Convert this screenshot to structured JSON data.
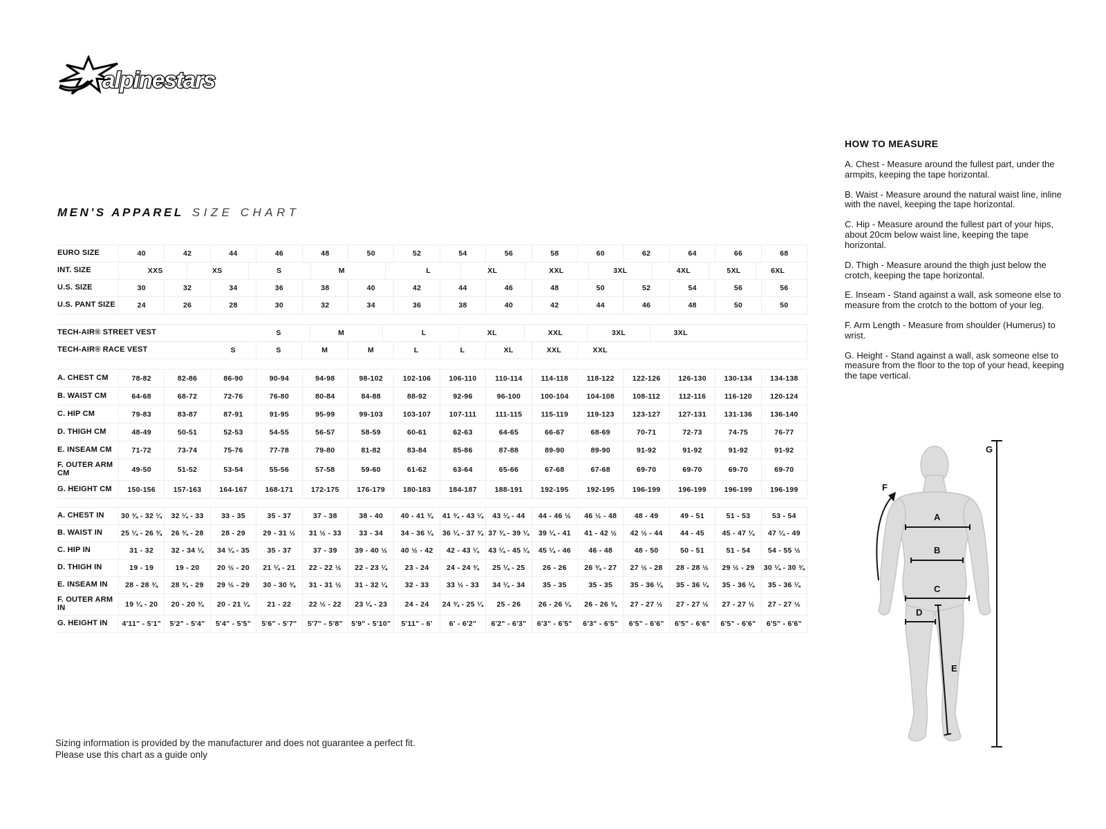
{
  "logo": {
    "brand": "alpinestars"
  },
  "title": {
    "main": "MEN'S APPAREL",
    "sub": "SIZE CHART"
  },
  "colors": {
    "brand_black": "#000000",
    "figure_gray": "#dcdcdc",
    "grid_gray": "#ececec"
  },
  "table": {
    "sections": [
      {
        "id": "sizes",
        "css": "sec-sizes",
        "rows": [
          {
            "label": "EURO SIZE",
            "values": [
              "40",
              "42",
              "44",
              "46",
              "48",
              "50",
              "52",
              "54",
              "56",
              "58",
              "60",
              "62",
              "64",
              "66",
              "68"
            ]
          },
          {
            "label": "INT. SIZE",
            "items": [
              {
                "t": "XXS",
                "p": 5.3
              },
              {
                "t": "XS",
                "p": 14.3
              },
              {
                "t": "S",
                "p": 23.3
              },
              {
                "t": "M",
                "p": 32.4
              },
              {
                "t": "L",
                "p": 45.0
              },
              {
                "t": "XL",
                "p": 54.3
              },
              {
                "t": "XXL",
                "p": 63.6
              },
              {
                "t": "3XL",
                "p": 72.9
              },
              {
                "t": "4XL",
                "p": 82.1
              },
              {
                "t": "5XL",
                "p": 89.4
              },
              {
                "t": "6XL",
                "p": 95.8
              }
            ]
          },
          {
            "label": "U.S. SIZE",
            "values": [
              "30",
              "32",
              "34",
              "36",
              "38",
              "40",
              "42",
              "44",
              "46",
              "48",
              "50",
              "52",
              "54",
              "56",
              "56"
            ]
          },
          {
            "label": "U.S. PANT SIZE",
            "values": [
              "24",
              "26",
              "28",
              "30",
              "32",
              "34",
              "36",
              "38",
              "40",
              "42",
              "44",
              "46",
              "48",
              "50",
              "50"
            ]
          }
        ]
      },
      {
        "id": "techair",
        "css": "sec-tech",
        "rows": [
          {
            "label": "TECH-AIR® STREET VEST",
            "nowrap": true,
            "items": [
              {
                "t": "S",
                "p": 23.3
              },
              {
                "t": "M",
                "p": 32.4
              },
              {
                "t": "L",
                "p": 44.4
              },
              {
                "t": "XL",
                "p": 54.3
              },
              {
                "t": "XXL",
                "p": 63.5
              },
              {
                "t": "3XL",
                "p": 72.7
              },
              {
                "t": "3XL",
                "p": 81.7
              }
            ]
          },
          {
            "label": "TECH-AIR® RACE VEST",
            "nowrap": true,
            "items": [
              {
                "t": "S",
                "p": 16.7
              },
              {
                "t": "S",
                "p": 23.3
              },
              {
                "t": "M",
                "p": 30.0
              },
              {
                "t": "M",
                "p": 36.7
              },
              {
                "t": "L",
                "p": 43.3
              },
              {
                "t": "L",
                "p": 50.0
              },
              {
                "t": "XL",
                "p": 56.7
              },
              {
                "t": "XXL",
                "p": 63.3
              },
              {
                "t": "XXL",
                "p": 70.0
              }
            ]
          }
        ]
      },
      {
        "id": "cm",
        "css": "sec-cm",
        "rowcss": "h25",
        "rows": [
          {
            "label": "A. CHEST CM",
            "values": [
              "78-82",
              "82-86",
              "86-90",
              "90-94",
              "94-98",
              "98-102",
              "102-106",
              "106-110",
              "110-114",
              "114-118",
              "118-122",
              "122-126",
              "126-130",
              "130-134",
              "134-138"
            ]
          },
          {
            "label": "B. WAIST CM",
            "values": [
              "64-68",
              "68-72",
              "72-76",
              "76-80",
              "80-84",
              "84-88",
              "88-92",
              "92-96",
              "96-100",
              "100-104",
              "104-108",
              "108-112",
              "112-116",
              "116-120",
              "120-124"
            ]
          },
          {
            "label": "C. HIP CM",
            "values": [
              "79-83",
              "83-87",
              "87-91",
              "91-95",
              "95-99",
              "99-103",
              "103-107",
              "107-111",
              "111-115",
              "115-119",
              "119-123",
              "123-127",
              "127-131",
              "131-136",
              "136-140"
            ]
          },
          {
            "label": "D. THIGH CM",
            "values": [
              "48-49",
              "50-51",
              "52-53",
              "54-55",
              "56-57",
              "58-59",
              "60-61",
              "62-63",
              "64-65",
              "66-67",
              "68-69",
              "70-71",
              "72-73",
              "74-75",
              "76-77"
            ]
          },
          {
            "label": "E. INSEAM CM",
            "values": [
              "71-72",
              "73-74",
              "75-76",
              "77-78",
              "79-80",
              "81-82",
              "83-84",
              "85-86",
              "87-88",
              "89-90",
              "89-90",
              "91-92",
              "91-92",
              "91-92",
              "91-92"
            ]
          },
          {
            "label": "F. OUTER ARM CM",
            "tall": true,
            "values": [
              "49-50",
              "51-52",
              "53-54",
              "55-56",
              "57-58",
              "59-60",
              "61-62",
              "63-64",
              "65-66",
              "67-68",
              "67-68",
              "69-70",
              "69-70",
              "69-70",
              "69-70"
            ]
          },
          {
            "label": "G. HEIGHT CM",
            "values": [
              "150-156",
              "157-163",
              "164-167",
              "168-171",
              "172-175",
              "176-179",
              "180-183",
              "184-187",
              "188-191",
              "192-195",
              "192-195",
              "196-199",
              "196-199",
              "196-199",
              "196-199"
            ]
          }
        ]
      },
      {
        "id": "in",
        "css": "sec-in",
        "rows": [
          {
            "label": "A. CHEST IN",
            "values": [
              "30 ¾ - 32 ¼",
              "32 ¼ - 33",
              "33 - 35",
              "35 - 37",
              "37 - 38",
              "38 - 40",
              "40 - 41 ¾",
              "41 ¾ - 43 ¼",
              "43 ¼ - 44",
              "44 - 46 ½",
              "46 ½ - 48",
              "48 - 49",
              "49 - 51",
              "51 - 53",
              "53 - 54"
            ]
          },
          {
            "label": "B. WAIST IN",
            "values": [
              "25 ¼ - 26 ¾",
              "26 ¾ - 28",
              "28 - 29",
              "29 - 31 ½",
              "31 ½ - 33",
              "33 - 34",
              "34 - 36 ¼",
              "36 ¼ - 37 ¾",
              "37 ¾ - 39 ¼",
              "39 ¼ - 41",
              "41 - 42 ½",
              "42 ½ - 44",
              "44 - 45",
              "45 - 47 ¼",
              "47 ¼ - 49"
            ]
          },
          {
            "label": "C. HIP IN",
            "values": [
              "31 - 32",
              "32 - 34 ¼",
              "34 ¼ - 35",
              "35 - 37",
              "37 - 39",
              "39 - 40 ½",
              "40 ½ - 42",
              "42 - 43 ¼",
              "43 ¼ - 45 ¼",
              "45 ¼ - 46",
              "46 - 48",
              "48 - 50",
              "50 - 51",
              "51 - 54",
              "54 - 55 ½"
            ]
          },
          {
            "label": "D. THIGH IN",
            "values": [
              "19 - 19",
              "19 - 20",
              "20 ½ - 20",
              "21 ¼ - 21",
              "22 - 22 ½",
              "22 - 23 ¼",
              "23 - 24",
              "24 - 24 ¾",
              "25 ¼ - 25",
              "26 - 26",
              "26 ¾ - 27",
              "27 ½ - 28",
              "28 - 28 ½",
              "29 ½ - 29",
              "30 ¼ - 30 ¾"
            ]
          },
          {
            "label": "E. INSEAM IN",
            "values": [
              "28 - 28 ¾",
              "28 ¾ - 29",
              "29 ½ - 29",
              "30 - 30 ¾",
              "31 - 31 ½",
              "31 - 32 ¼",
              "32 - 33",
              "33 ½ - 33",
              "34 ¼ - 34",
              "35 - 35",
              "35 - 35",
              "35 - 36 ¼",
              "35 - 36 ¼",
              "35 - 36 ¼",
              "35 - 36 ¼"
            ]
          },
          {
            "label": "F. OUTER ARM IN",
            "tall": true,
            "values": [
              "19 ¼ - 20",
              "20 - 20 ¾",
              "20 - 21 ¼",
              "21 - 22",
              "22 ½ - 22",
              "23 ¼ - 23",
              "24 - 24",
              "24 ¾ - 25 ¼",
              "25 - 26",
              "26 - 26 ¼",
              "26 - 26 ¾",
              "27 - 27 ½",
              "27 - 27 ½",
              "27 - 27 ½",
              "27 - 27 ½"
            ]
          },
          {
            "label": "G. HEIGHT IN",
            "values": [
              "4'11\" - 5'1\"",
              "5'2\" - 5'4\"",
              "5'4\" - 5'5\"",
              "5'6\" - 5'7\"",
              "5'7\" - 5'8\"",
              "5'9\" - 5'10\"",
              "5'11\" - 6'",
              "6' - 6'2\"",
              "6'2\" - 6'3\"",
              "6'3\" - 6'5\"",
              "6'3\" - 6'5\"",
              "6'5\" - 6'6\"",
              "6'5\" - 6'6\"",
              "6'5\" - 6'6\"",
              "6'5\" - 6'6\""
            ]
          }
        ]
      }
    ]
  },
  "how_to_measure": {
    "title": "HOW TO MEASURE",
    "items": [
      "A. Chest - Measure around the fullest part, under the armpits, keeping the tape horizontal.",
      "B. Waist - Measure around the natural waist line, inline with the navel, keeping the tape horizontal.",
      "C. Hip - Measure around the fullest part of your hips, about 20cm below waist line, keeping the tape horizontal.",
      "D. Thigh - Measure around the thigh just below the crotch, keeping the tape horizontal.",
      "E. Inseam - Stand against a wall, ask someone else to measure from the crotch to the bottom of your leg.",
      "F. Arm Length - Measure from shoulder (Humerus) to wrist.",
      "G. Height - Stand against a wall, ask someone else to measure from the floor to the top of your head, keeping the tape vertical."
    ]
  },
  "figure": {
    "labels": [
      "A",
      "B",
      "C",
      "D",
      "E",
      "F",
      "G"
    ]
  },
  "footer": {
    "line1": "Sizing information is provided by the manufacturer and does not guarantee a perfect fit.",
    "line2": "Please use this chart as a guide only"
  }
}
